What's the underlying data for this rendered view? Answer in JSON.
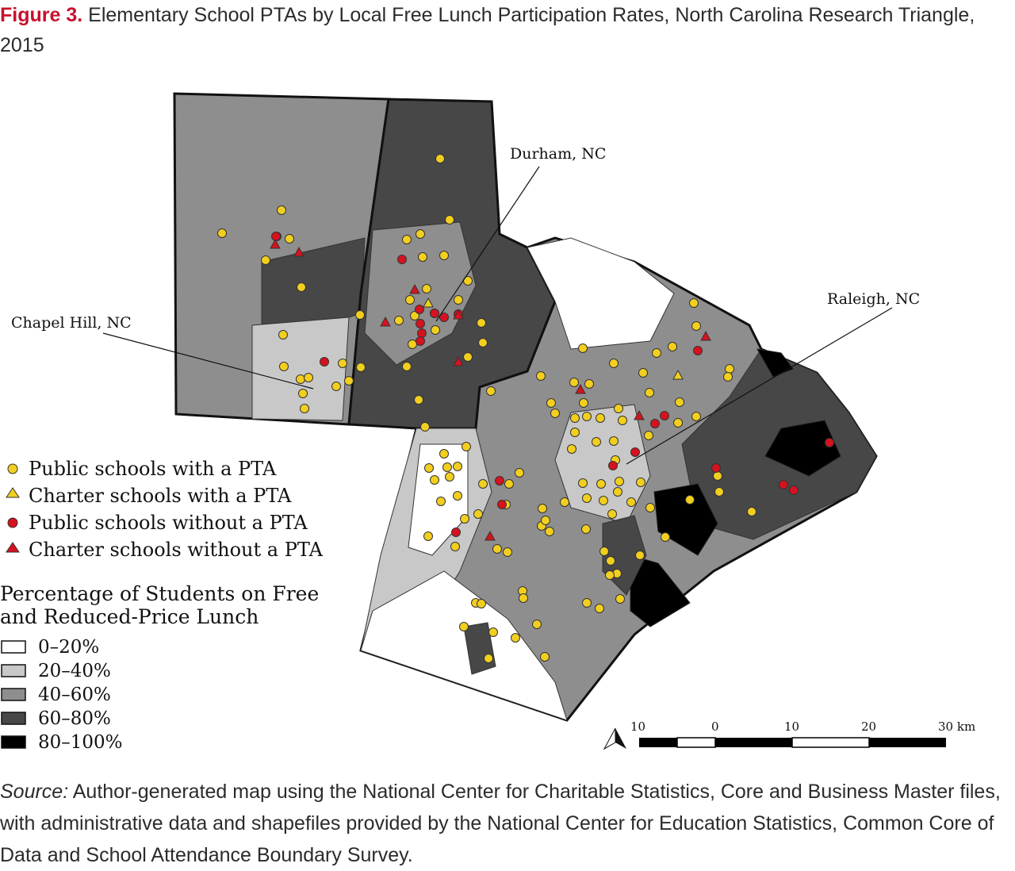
{
  "caption": {
    "figure_number": "Figure 3.",
    "title": "Elementary School PTAs by Local Free Lunch Participation Rates, North Carolina Research Triangle, 2015"
  },
  "map": {
    "city_labels": [
      "Durham, NC",
      "Raleigh, NC",
      "Chapel Hill, NC"
    ],
    "symbol_colors": {
      "pta": "#f2cf1f",
      "no_pta": "#d6121f"
    }
  },
  "legend": {
    "symbols": [
      {
        "label": "Public schools with a PTA",
        "shape": "circle",
        "color": "#f2cf1f"
      },
      {
        "label": "Charter schools with a PTA",
        "shape": "triangle",
        "color": "#f2cf1f"
      },
      {
        "label": "Public schools without a PTA",
        "shape": "circle",
        "color": "#d6121f"
      },
      {
        "label": "Charter schools without a PTA",
        "shape": "triangle",
        "color": "#d6121f"
      }
    ],
    "shading_title_line1": "Percentage of Students on Free",
    "shading_title_line2": "and Reduced-Price Lunch",
    "shading": [
      {
        "label": "0–20%",
        "color": "#ffffff"
      },
      {
        "label": "20–40%",
        "color": "#c8c8c8"
      },
      {
        "label": "40–60%",
        "color": "#8e8e8e"
      },
      {
        "label": "60–80%",
        "color": "#474747"
      },
      {
        "label": "80–100%",
        "color": "#000000"
      }
    ]
  },
  "scale_bar": {
    "labels": [
      "10",
      "0",
      "10",
      "20",
      "30 km"
    ]
  },
  "source": {
    "label": "Source:",
    "text": "Author-generated map using the National Center for Charitable Statistics, Core and Business Master files, with administrative data and shapefiles provided by the National Center for Education Statistics, Common Core of Data and School Attendance Boundary Survey."
  }
}
